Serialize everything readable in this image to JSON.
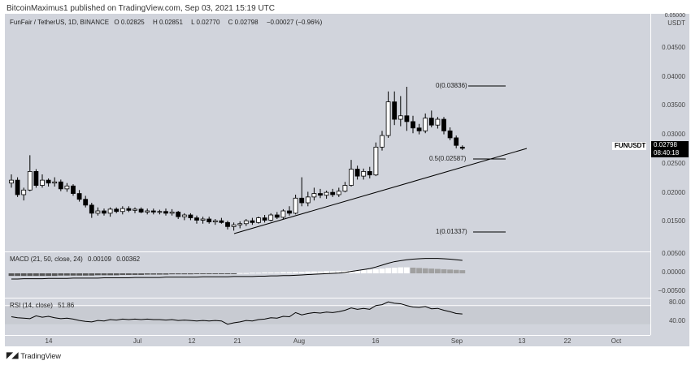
{
  "caption": "BitcoinMaximus1 published on TradingView.com, Sep 03, 2021 15:19 UTC",
  "legend": {
    "symbol": "FunFair / TetherUS, 1D, BINANCE",
    "o": "0.02825",
    "h": "0.02851",
    "l": "0.02770",
    "c": "0.02798",
    "chg": "−0.00027 (−0.96%)"
  },
  "macd_legend": {
    "label": "MACD (21, 50, close, 24)",
    "v1": "0.00109",
    "v2": "0.00362"
  },
  "rsi_legend": {
    "label": "RSI (14, close)",
    "v1": "51.86"
  },
  "price_axis": {
    "currency": "USDT",
    "top_tick": "0.05000",
    "ticks": [
      "0.04500",
      "0.04000",
      "0.03500",
      "0.03000",
      "0.02500",
      "0.02000",
      "0.01500"
    ]
  },
  "macd_axis": [
    "0.00500",
    "0.00000",
    "−0.00500"
  ],
  "rsi_axis": [
    "80.00",
    "40.00"
  ],
  "time_axis": [
    "14",
    "Jul",
    "12",
    "21",
    "Aug",
    "16",
    "Sep",
    "13",
    "22",
    "Oct"
  ],
  "symbol_tag": "FUNUSDT",
  "last_price": "0.02798",
  "countdown": "08:40:18",
  "fib": [
    "0(0.03836)",
    "0.5(0.02587)",
    "1(0.01337)"
  ],
  "footer": {
    "brand": "TradingView",
    "icon": "tradingview-logo-icon"
  },
  "colors": {
    "pane_bg": "#d1d4dc",
    "candle_up": "#ffffff",
    "candle_down": "#000000"
  },
  "chart_data": {
    "type": "candlestick",
    "title": "FunFair / TetherUS, 1D, BINANCE",
    "ylim": [
      0.01,
      0.05
    ],
    "candles": [
      [
        0.022,
        0.0235,
        0.0212,
        0.0225
      ],
      [
        0.0225,
        0.023,
        0.0196,
        0.02
      ],
      [
        0.02,
        0.0212,
        0.019,
        0.0208
      ],
      [
        0.0208,
        0.0268,
        0.0206,
        0.024
      ],
      [
        0.024,
        0.0244,
        0.0212,
        0.0216
      ],
      [
        0.0216,
        0.0235,
        0.0212,
        0.0225
      ],
      [
        0.0225,
        0.0228,
        0.0214,
        0.022
      ],
      [
        0.022,
        0.023,
        0.0214,
        0.0222
      ],
      [
        0.0222,
        0.0226,
        0.0206,
        0.021
      ],
      [
        0.021,
        0.022,
        0.0205,
        0.0215
      ],
      [
        0.0215,
        0.0218,
        0.0198,
        0.0202
      ],
      [
        0.0202,
        0.0208,
        0.0188,
        0.0192
      ],
      [
        0.0192,
        0.0198,
        0.0178,
        0.0182
      ],
      [
        0.0182,
        0.0186,
        0.016,
        0.0168
      ],
      [
        0.0168,
        0.0178,
        0.0164,
        0.0172
      ],
      [
        0.0172,
        0.0176,
        0.0164,
        0.0168
      ],
      [
        0.0168,
        0.0178,
        0.0162,
        0.0175
      ],
      [
        0.0175,
        0.0178,
        0.0168,
        0.0171
      ],
      [
        0.0171,
        0.018,
        0.0166,
        0.0176
      ],
      [
        0.0176,
        0.018,
        0.017,
        0.0173
      ],
      [
        0.0173,
        0.0178,
        0.0168,
        0.0175
      ],
      [
        0.0175,
        0.0178,
        0.0168,
        0.017
      ],
      [
        0.017,
        0.0176,
        0.0166,
        0.0172
      ],
      [
        0.0172,
        0.0176,
        0.0166,
        0.017
      ],
      [
        0.017,
        0.0174,
        0.0166,
        0.0171
      ],
      [
        0.0171,
        0.0176,
        0.0164,
        0.0168
      ],
      [
        0.0168,
        0.0175,
        0.0164,
        0.017
      ],
      [
        0.017,
        0.0172,
        0.0158,
        0.0162
      ],
      [
        0.0162,
        0.0168,
        0.0156,
        0.0165
      ],
      [
        0.0165,
        0.0168,
        0.0156,
        0.016
      ],
      [
        0.016,
        0.0164,
        0.015,
        0.0156
      ],
      [
        0.0156,
        0.0162,
        0.015,
        0.0158
      ],
      [
        0.0158,
        0.0162,
        0.015,
        0.0153
      ],
      [
        0.0153,
        0.0158,
        0.0148,
        0.0155
      ],
      [
        0.0155,
        0.016,
        0.015,
        0.0152
      ],
      [
        0.0152,
        0.0155,
        0.014,
        0.0145
      ],
      [
        0.0145,
        0.0152,
        0.0138,
        0.0148
      ],
      [
        0.0148,
        0.0154,
        0.0142,
        0.015
      ],
      [
        0.015,
        0.0158,
        0.0146,
        0.0155
      ],
      [
        0.0155,
        0.016,
        0.0148,
        0.0152
      ],
      [
        0.0152,
        0.0162,
        0.015,
        0.016
      ],
      [
        0.016,
        0.0165,
        0.0152,
        0.0156
      ],
      [
        0.0156,
        0.0168,
        0.0154,
        0.0165
      ],
      [
        0.0165,
        0.017,
        0.0158,
        0.0161
      ],
      [
        0.0161,
        0.0175,
        0.0158,
        0.0172
      ],
      [
        0.0172,
        0.018,
        0.0164,
        0.0168
      ],
      [
        0.0168,
        0.02,
        0.0166,
        0.0194
      ],
      [
        0.0194,
        0.023,
        0.018,
        0.0186
      ],
      [
        0.0186,
        0.0205,
        0.018,
        0.0196
      ],
      [
        0.0196,
        0.0212,
        0.019,
        0.0202
      ],
      [
        0.0202,
        0.021,
        0.0194,
        0.0199
      ],
      [
        0.0199,
        0.0207,
        0.0193,
        0.0204
      ],
      [
        0.0204,
        0.021,
        0.0196,
        0.02
      ],
      [
        0.02,
        0.0212,
        0.0196,
        0.0206
      ],
      [
        0.0206,
        0.0222,
        0.0204,
        0.0216
      ],
      [
        0.0216,
        0.026,
        0.0214,
        0.0244
      ],
      [
        0.0244,
        0.025,
        0.0226,
        0.0232
      ],
      [
        0.0232,
        0.0245,
        0.0226,
        0.024
      ],
      [
        0.024,
        0.0248,
        0.0228,
        0.0234
      ],
      [
        0.0234,
        0.029,
        0.0232,
        0.0282
      ],
      [
        0.0282,
        0.031,
        0.0276,
        0.0302
      ],
      [
        0.0302,
        0.0378,
        0.0298,
        0.036
      ],
      [
        0.036,
        0.0378,
        0.032,
        0.033
      ],
      [
        0.033,
        0.037,
        0.0318,
        0.0336
      ],
      [
        0.0336,
        0.0386,
        0.031,
        0.0326
      ],
      [
        0.0326,
        0.0336,
        0.0306,
        0.0315
      ],
      [
        0.0315,
        0.0322,
        0.0304,
        0.031
      ],
      [
        0.031,
        0.034,
        0.0306,
        0.0332
      ],
      [
        0.0332,
        0.0345,
        0.0316,
        0.032
      ],
      [
        0.032,
        0.0334,
        0.0314,
        0.033
      ],
      [
        0.033,
        0.0334,
        0.0304,
        0.031
      ],
      [
        0.031,
        0.0316,
        0.0294,
        0.0298
      ],
      [
        0.0298,
        0.0302,
        0.028,
        0.0285
      ],
      [
        0.0282,
        0.0285,
        0.0277,
        0.028
      ]
    ],
    "rsi": [
      46,
      44,
      43,
      42,
      48,
      45,
      47,
      44,
      42,
      43,
      41,
      38,
      36,
      35,
      38,
      37,
      40,
      39,
      41,
      40,
      41,
      40,
      41,
      40,
      40,
      39,
      40,
      38,
      39,
      38,
      37,
      38,
      37,
      38,
      37,
      30,
      33,
      35,
      38,
      37,
      40,
      41,
      44,
      43,
      47,
      46,
      55,
      50,
      53,
      55,
      54,
      56,
      55,
      57,
      60,
      65,
      62,
      64,
      62,
      70,
      72,
      78,
      75,
      74,
      70,
      67,
      66,
      68,
      63,
      64,
      60,
      57,
      53,
      52
    ],
    "macd": [
      -0.0018,
      -0.0018,
      -0.0017,
      -0.0017,
      -0.0017,
      -0.0017,
      -0.0016,
      -0.0016,
      -0.0016,
      -0.0016,
      -0.0015,
      -0.0015,
      -0.0015,
      -0.0015,
      -0.0015,
      -0.0014,
      -0.0014,
      -0.0014,
      -0.0014,
      -0.0014,
      -0.0013,
      -0.0013,
      -0.0013,
      -0.0013,
      -0.0013,
      -0.0012,
      -0.0012,
      -0.0012,
      -0.0012,
      -0.0012,
      -0.0012,
      -0.0011,
      -0.0011,
      -0.0011,
      -0.0011,
      -0.0011,
      -0.001,
      -0.001,
      -0.001,
      -0.001,
      -0.0009,
      -0.0009,
      -0.0008,
      -0.0008,
      -0.0007,
      -0.0007,
      -0.0006,
      -0.0005,
      -0.0004,
      -0.0003,
      -0.0002,
      -0.0001,
      0.0,
      0.0001,
      0.0003,
      0.0006,
      0.0009,
      0.0012,
      0.0015,
      0.002,
      0.0026,
      0.0032,
      0.0037,
      0.004,
      0.0043,
      0.0045,
      0.0046,
      0.0047,
      0.0047,
      0.0047,
      0.0046,
      0.0045,
      0.0043,
      0.0041
    ],
    "hist": [
      -0.0008,
      -0.0008,
      -0.0008,
      -0.0008,
      -0.0008,
      -0.0008,
      -0.0008,
      -0.0008,
      -0.0007,
      -0.0007,
      -0.0007,
      -0.0007,
      -0.0007,
      -0.0007,
      -0.0006,
      -0.0006,
      -0.0006,
      -0.0006,
      -0.0005,
      -0.0005,
      -0.0005,
      -0.0005,
      -0.0004,
      -0.0004,
      -0.0004,
      -0.0004,
      -0.0003,
      -0.0003,
      -0.0003,
      -0.0003,
      -0.0002,
      -0.0002,
      -0.0002,
      -0.0002,
      -0.0002,
      -0.0001,
      -0.0001,
      0.0001,
      0.0001,
      0.0002,
      0.0002,
      0.0003,
      0.0003,
      0.0003,
      0.0004,
      0.0004,
      0.0005,
      0.0005,
      0.0006,
      0.0006,
      0.0006,
      0.0007,
      0.0007,
      0.0008,
      0.0008,
      0.0009,
      0.001,
      0.0011,
      0.0012,
      0.0013,
      0.0015,
      0.0017,
      0.0018,
      0.0019,
      0.0019,
      0.0018,
      0.0017,
      0.0016,
      0.0015,
      0.0014,
      0.0013,
      0.0012,
      0.0011,
      0.001
    ]
  }
}
